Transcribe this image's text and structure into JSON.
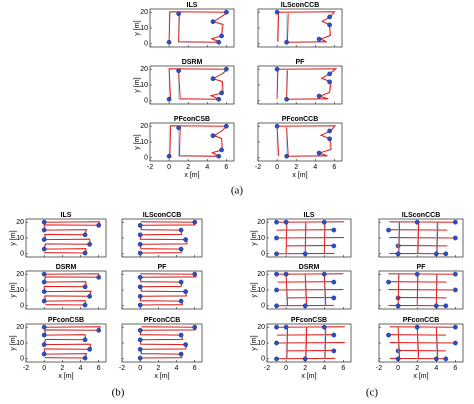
{
  "figure": {
    "axes": {
      "xlabel": "x [m]",
      "ylabel": "y [m]",
      "xlim": [
        -2,
        6.8
      ],
      "ylim": [
        -2,
        22
      ],
      "xticks": [
        -2,
        0,
        2,
        4,
        6
      ],
      "yticks": [
        0,
        10,
        20
      ]
    },
    "panels": [
      {
        "label": "(a)",
        "plots": [
          {
            "title": "ILS"
          },
          {
            "title": "ILSconCCB"
          },
          {
            "title": "DSRM"
          },
          {
            "title": "PF"
          },
          {
            "title": "PFconCSB"
          },
          {
            "title": "PFconCCB"
          }
        ]
      },
      {
        "label": "(b)",
        "plots": [
          {
            "title": "ILS"
          },
          {
            "title": "ILSconCCB"
          },
          {
            "title": "DSRM"
          },
          {
            "title": "PF"
          },
          {
            "title": "PFconCSB"
          },
          {
            "title": "PFconCCB"
          }
        ]
      },
      {
        "label": "(c)",
        "plots": [
          {
            "title": "ILS"
          },
          {
            "title": "ILSconCCB"
          },
          {
            "title": "DSRM"
          },
          {
            "title": "PF"
          },
          {
            "title": "PFconCSB"
          },
          {
            "title": "PFconCCB"
          }
        ]
      }
    ]
  }
}
